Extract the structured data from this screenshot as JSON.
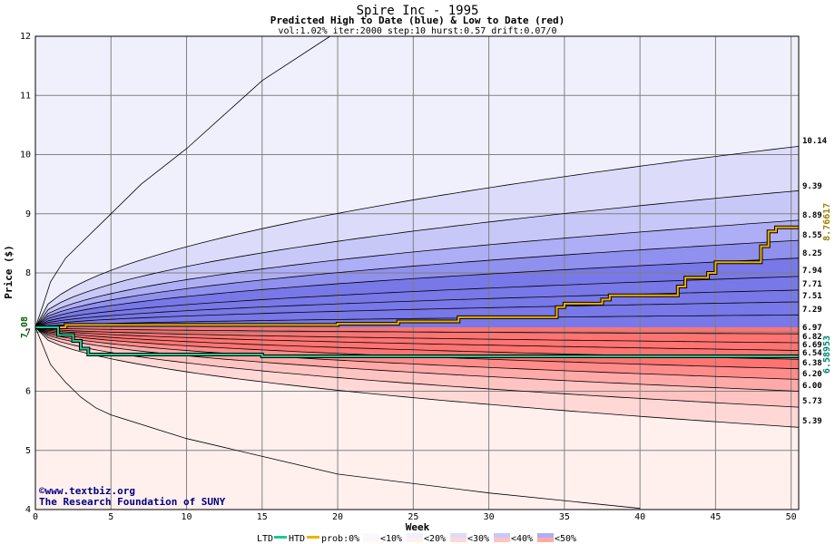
{
  "header": {
    "title": "Spire Inc - 1995",
    "subtitle": "Predicted High to Date (blue) &  Low to Date (red)",
    "params": "vol:1.02% iter:2000 step:10 hurst:0.57 drift:0.07/0"
  },
  "credits": {
    "site": "©www.textbiz.org",
    "org": "The Research Foundation of SUNY"
  },
  "legend": {
    "ltd": "LTD",
    "htd": "HTD",
    "prob": "prob:0%",
    "bins": [
      "<10%",
      "<20%",
      "<30%",
      "<40%",
      "<50%"
    ]
  },
  "colors": {
    "htd_line": "#f0b000",
    "ltd_line": "#20c890",
    "start_label": "#006000",
    "final_htd_label": "#a08000",
    "final_ltd_label": "#008870",
    "blue_bands": [
      "#f0f0fc",
      "#dcdcfa",
      "#c8c8f8",
      "#aeaef6",
      "#9090ee",
      "#7878e8"
    ],
    "red_bands": [
      "#fff0ee",
      "#ffd8d6",
      "#ffc4c2",
      "#ffaaa8",
      "#ff8c8a",
      "#ff7472"
    ]
  },
  "chart_data": {
    "type": "area",
    "xlabel": "Week",
    "ylabel": "Price ($)",
    "xlim": [
      0,
      50.5
    ],
    "ylim": [
      4,
      12
    ],
    "xticks": [
      0,
      5,
      10,
      15,
      20,
      25,
      30,
      35,
      40,
      45,
      50
    ],
    "yticks": [
      4,
      5,
      6,
      7,
      8,
      9,
      10,
      11,
      12
    ],
    "grid": true,
    "start_price": 7.08,
    "start_price_label": "7.08",
    "final_htd_label": "8.76617",
    "final_ltd_label": "6.58953",
    "percentile_end_values": [
      10.14,
      9.39,
      8.89,
      8.55,
      8.25,
      7.94,
      7.71,
      7.51,
      7.29,
      6.97,
      6.82,
      6.69,
      6.54,
      6.38,
      6.2,
      6.0,
      5.73,
      5.39
    ],
    "percentile_end_labels": [
      "10.14",
      "9.39",
      "8.89",
      "8.55",
      "8.25",
      "7.94",
      "7.71",
      "7.51",
      "7.29",
      "6.97",
      "6.82",
      "6.69",
      "6.54",
      "6.38",
      "6.20",
      "6.00",
      "5.73",
      "5.39"
    ],
    "outer_upper_curve": {
      "x": [
        0,
        0.5,
        1,
        2,
        3,
        5,
        7,
        10,
        15,
        19.5
      ],
      "y": [
        7.08,
        7.45,
        7.85,
        8.25,
        8.5,
        9.0,
        9.5,
        10.1,
        11.25,
        12.0
      ]
    },
    "outer_lower_curve": {
      "x": [
        0,
        1,
        2,
        3,
        4,
        5,
        10,
        20,
        30,
        40
      ],
      "y": [
        7.08,
        6.45,
        6.15,
        5.9,
        5.72,
        5.6,
        5.2,
        4.6,
        4.28,
        4.02
      ]
    },
    "htd_path": {
      "x": [
        0,
        2,
        2,
        20,
        20,
        24,
        24,
        28,
        28,
        34.5,
        34.5,
        35,
        35,
        37.5,
        37.5,
        38,
        38,
        42.5,
        42.5,
        43,
        43,
        44.5,
        44.5,
        45,
        45,
        48,
        48,
        48.5,
        48.5,
        49,
        49,
        50.5
      ],
      "y": [
        7.08,
        7.08,
        7.12,
        7.12,
        7.14,
        7.14,
        7.18,
        7.18,
        7.25,
        7.25,
        7.42,
        7.42,
        7.48,
        7.48,
        7.55,
        7.55,
        7.62,
        7.62,
        7.77,
        7.77,
        7.92,
        7.92,
        8.0,
        8.0,
        8.18,
        8.18,
        8.45,
        8.45,
        8.7,
        8.7,
        8.77,
        8.77
      ]
    },
    "ltd_path": {
      "x": [
        0,
        1.5,
        1.5,
        2.5,
        2.5,
        3,
        3,
        3.5,
        3.5,
        15,
        15,
        50.5
      ],
      "y": [
        7.08,
        7.08,
        6.95,
        6.95,
        6.85,
        6.85,
        6.72,
        6.72,
        6.62,
        6.62,
        6.59,
        6.59
      ]
    }
  }
}
